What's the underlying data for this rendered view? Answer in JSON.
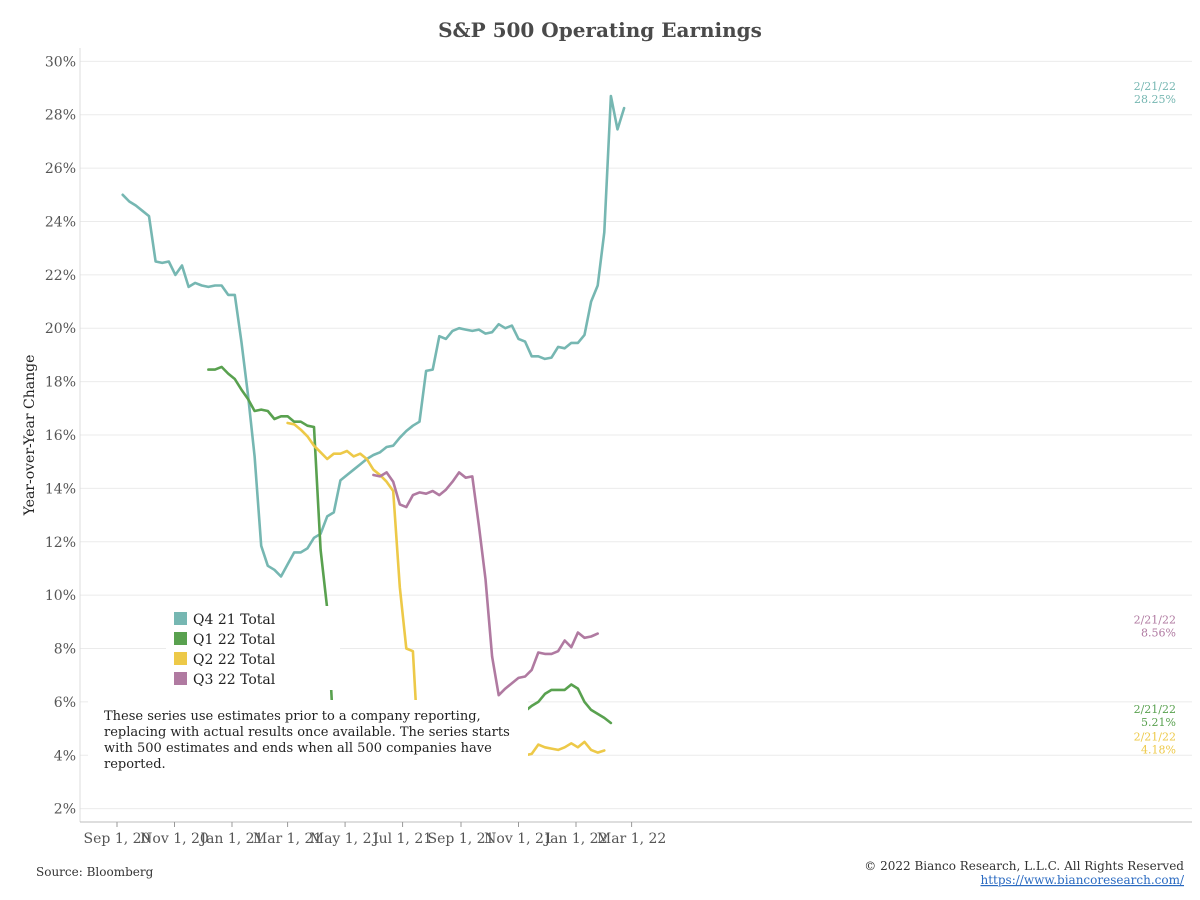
{
  "chart_data": {
    "type": "line",
    "title": "S&P 500 Operating Earnings",
    "ylabel": "Year-over-Year Change",
    "xlabel": "",
    "ylim": [
      1.5,
      30.5
    ],
    "grid": true,
    "legend_position": "bottom-left",
    "x_ticks": [
      "Sep 1, 20",
      "Nov 1, 20",
      "Jan 1, 21",
      "Mar 1, 21",
      "May 1, 21",
      "Jul 1, 21",
      "Sep 1, 21",
      "Nov 1, 21",
      "Jan 1, 22",
      "Mar 1, 22"
    ],
    "y_ticks": [
      "2%",
      "4%",
      "6%",
      "8%",
      "10%",
      "12%",
      "14%",
      "16%",
      "18%",
      "20%",
      "22%",
      "24%",
      "26%",
      "28%",
      "30%"
    ],
    "series": [
      {
        "name": "Q4 21 Total",
        "color": "#76b7b2",
        "end_label_date": "2/21/22",
        "end_label_value": "28.25%",
        "points": [
          [
            "2020-09-07",
            25.0
          ],
          [
            "2020-09-14",
            24.75
          ],
          [
            "2020-09-21",
            24.6
          ],
          [
            "2020-09-28",
            24.4
          ],
          [
            "2020-10-05",
            24.2
          ],
          [
            "2020-10-12",
            22.5
          ],
          [
            "2020-10-19",
            22.45
          ],
          [
            "2020-10-26",
            22.5
          ],
          [
            "2020-11-02",
            22.0
          ],
          [
            "2020-11-09",
            22.35
          ],
          [
            "2020-11-16",
            21.55
          ],
          [
            "2020-11-23",
            21.7
          ],
          [
            "2020-11-30",
            21.6
          ],
          [
            "2020-12-07",
            21.55
          ],
          [
            "2020-12-14",
            21.6
          ],
          [
            "2020-12-21",
            21.6
          ],
          [
            "2020-12-28",
            21.25
          ],
          [
            "2021-01-04",
            21.25
          ],
          [
            "2021-01-11",
            19.5
          ],
          [
            "2021-01-18",
            17.5
          ],
          [
            "2021-01-25",
            15.2
          ],
          [
            "2021-02-01",
            11.85
          ],
          [
            "2021-02-08",
            11.1
          ],
          [
            "2021-02-15",
            10.95
          ],
          [
            "2021-02-22",
            10.7
          ],
          [
            "2021-03-01",
            11.15
          ],
          [
            "2021-03-08",
            11.6
          ],
          [
            "2021-03-15",
            11.6
          ],
          [
            "2021-03-22",
            11.75
          ],
          [
            "2021-03-29",
            12.15
          ],
          [
            "2021-04-05",
            12.3
          ],
          [
            "2021-04-12",
            12.95
          ],
          [
            "2021-04-19",
            13.1
          ],
          [
            "2021-04-26",
            14.3
          ],
          [
            "2021-05-03",
            14.5
          ],
          [
            "2021-05-10",
            14.7
          ],
          [
            "2021-05-17",
            14.9
          ],
          [
            "2021-05-24",
            15.1
          ],
          [
            "2021-05-31",
            15.25
          ],
          [
            "2021-06-07",
            15.35
          ],
          [
            "2021-06-14",
            15.55
          ],
          [
            "2021-06-21",
            15.6
          ],
          [
            "2021-06-28",
            15.9
          ],
          [
            "2021-07-05",
            16.15
          ],
          [
            "2021-07-12",
            16.35
          ],
          [
            "2021-07-19",
            16.5
          ],
          [
            "2021-07-26",
            18.4
          ],
          [
            "2021-08-02",
            18.45
          ],
          [
            "2021-08-09",
            19.7
          ],
          [
            "2021-08-16",
            19.6
          ],
          [
            "2021-08-23",
            19.9
          ],
          [
            "2021-08-30",
            20.0
          ],
          [
            "2021-09-06",
            19.95
          ],
          [
            "2021-09-13",
            19.9
          ],
          [
            "2021-09-20",
            19.95
          ],
          [
            "2021-09-27",
            19.8
          ],
          [
            "2021-10-04",
            19.85
          ],
          [
            "2021-10-11",
            20.15
          ],
          [
            "2021-10-18",
            20.0
          ],
          [
            "2021-10-25",
            20.1
          ],
          [
            "2021-11-01",
            19.6
          ],
          [
            "2021-11-08",
            19.5
          ],
          [
            "2021-11-15",
            18.95
          ],
          [
            "2021-11-22",
            18.95
          ],
          [
            "2021-11-29",
            18.85
          ],
          [
            "2021-12-06",
            18.9
          ],
          [
            "2021-12-13",
            19.3
          ],
          [
            "2021-12-20",
            19.25
          ],
          [
            "2021-12-27",
            19.45
          ],
          [
            "2022-01-03",
            19.45
          ],
          [
            "2022-01-10",
            19.75
          ],
          [
            "2022-01-17",
            21.0
          ],
          [
            "2022-01-24",
            21.6
          ],
          [
            "2022-01-31",
            23.6
          ],
          [
            "2022-02-07",
            28.7
          ],
          [
            "2022-02-14",
            27.45
          ],
          [
            "2022-02-21",
            28.25
          ]
        ]
      },
      {
        "name": "Q1 22 Total",
        "color": "#59a14f",
        "end_label_date": "2/21/22",
        "end_label_value": "5.21%",
        "points": [
          [
            "2020-12-07",
            18.45
          ],
          [
            "2020-12-14",
            18.45
          ],
          [
            "2020-12-21",
            18.55
          ],
          [
            "2020-12-28",
            18.3
          ],
          [
            "2021-01-04",
            18.1
          ],
          [
            "2021-01-11",
            17.7
          ],
          [
            "2021-01-18",
            17.35
          ],
          [
            "2021-01-25",
            16.9
          ],
          [
            "2021-02-01",
            16.95
          ],
          [
            "2021-02-08",
            16.9
          ],
          [
            "2021-02-15",
            16.6
          ],
          [
            "2021-02-22",
            16.7
          ],
          [
            "2021-03-01",
            16.7
          ],
          [
            "2021-03-08",
            16.5
          ],
          [
            "2021-03-15",
            16.5
          ],
          [
            "2021-03-22",
            16.35
          ],
          [
            "2021-03-29",
            16.3
          ],
          [
            "2021-04-05",
            11.7
          ],
          [
            "2021-04-12",
            9.5
          ],
          [
            "2021-04-19",
            4.5
          ],
          [
            "2021-04-26",
            2.95
          ],
          [
            "2021-05-03",
            3.1
          ],
          [
            "2021-05-10",
            2.65
          ],
          [
            "2021-05-17",
            2.55
          ],
          [
            "2021-05-24",
            2.7
          ],
          [
            "2021-05-31",
            2.85
          ],
          [
            "2021-06-07",
            3.15
          ],
          [
            "2021-06-14",
            3.6
          ],
          [
            "2021-06-21",
            3.8
          ],
          [
            "2021-06-28",
            3.85
          ],
          [
            "2021-07-05",
            3.8
          ],
          [
            "2021-07-12",
            4.8
          ],
          [
            "2021-07-19",
            4.85
          ],
          [
            "2021-07-26",
            5.6
          ],
          [
            "2021-08-02",
            5.65
          ],
          [
            "2021-08-09",
            5.8
          ],
          [
            "2021-08-16",
            5.85
          ],
          [
            "2021-08-23",
            5.85
          ],
          [
            "2021-08-30",
            5.8
          ],
          [
            "2021-09-06",
            5.75
          ],
          [
            "2021-09-13",
            5.65
          ],
          [
            "2021-09-20",
            5.6
          ],
          [
            "2021-09-27",
            5.95
          ],
          [
            "2021-10-04",
            5.6
          ],
          [
            "2021-10-11",
            5.8
          ],
          [
            "2021-10-18",
            5.3
          ],
          [
            "2021-10-25",
            5.4
          ],
          [
            "2021-11-01",
            5.55
          ],
          [
            "2021-11-08",
            5.65
          ],
          [
            "2021-11-15",
            5.85
          ],
          [
            "2021-11-22",
            6.0
          ],
          [
            "2021-11-29",
            6.3
          ],
          [
            "2021-12-06",
            6.45
          ],
          [
            "2021-12-13",
            6.45
          ],
          [
            "2021-12-20",
            6.45
          ],
          [
            "2021-12-27",
            6.65
          ],
          [
            "2022-01-03",
            6.5
          ],
          [
            "2022-01-10",
            6.0
          ],
          [
            "2022-01-17",
            5.7
          ],
          [
            "2022-01-24",
            5.55
          ],
          [
            "2022-01-31",
            5.4
          ],
          [
            "2022-02-07",
            5.21
          ]
        ]
      },
      {
        "name": "Q2 22 Total",
        "color": "#edc948",
        "end_label_date": "2/21/22",
        "end_label_value": "4.18%",
        "points": [
          [
            "2021-03-01",
            16.45
          ],
          [
            "2021-03-08",
            16.4
          ],
          [
            "2021-03-15",
            16.2
          ],
          [
            "2021-03-22",
            15.95
          ],
          [
            "2021-03-29",
            15.6
          ],
          [
            "2021-04-05",
            15.35
          ],
          [
            "2021-04-12",
            15.1
          ],
          [
            "2021-04-19",
            15.3
          ],
          [
            "2021-04-26",
            15.3
          ],
          [
            "2021-05-03",
            15.4
          ],
          [
            "2021-05-10",
            15.2
          ],
          [
            "2021-05-17",
            15.3
          ],
          [
            "2021-05-24",
            15.1
          ],
          [
            "2021-05-31",
            14.7
          ],
          [
            "2021-06-07",
            14.5
          ],
          [
            "2021-06-14",
            14.25
          ],
          [
            "2021-06-21",
            13.9
          ],
          [
            "2021-06-28",
            10.3
          ],
          [
            "2021-07-05",
            8.0
          ],
          [
            "2021-07-12",
            7.9
          ],
          [
            "2021-07-19",
            3.5
          ],
          [
            "2021-07-26",
            3.3
          ],
          [
            "2021-08-02",
            3.25
          ],
          [
            "2021-08-09",
            3.2
          ],
          [
            "2021-08-16",
            3.15
          ],
          [
            "2021-08-23",
            3.2
          ],
          [
            "2021-08-30",
            3.6
          ],
          [
            "2021-09-06",
            3.6
          ],
          [
            "2021-09-13",
            3.55
          ],
          [
            "2021-09-20",
            3.95
          ],
          [
            "2021-09-27",
            3.45
          ],
          [
            "2021-10-04",
            3.5
          ],
          [
            "2021-10-11",
            3.3
          ],
          [
            "2021-10-18",
            3.35
          ],
          [
            "2021-10-25",
            3.4
          ],
          [
            "2021-11-01",
            3.65
          ],
          [
            "2021-11-08",
            4.0
          ],
          [
            "2021-11-15",
            4.05
          ],
          [
            "2021-11-22",
            4.4
          ],
          [
            "2021-11-29",
            4.3
          ],
          [
            "2021-12-06",
            4.25
          ],
          [
            "2021-12-13",
            4.2
          ],
          [
            "2021-12-20",
            4.3
          ],
          [
            "2021-12-27",
            4.45
          ],
          [
            "2022-01-03",
            4.3
          ],
          [
            "2022-01-10",
            4.5
          ],
          [
            "2022-01-17",
            4.2
          ],
          [
            "2022-01-24",
            4.1
          ],
          [
            "2022-01-31",
            4.18
          ]
        ]
      },
      {
        "name": "Q3 22 Total",
        "color": "#b07aa1",
        "end_label_date": "2/21/22",
        "end_label_value": "8.56%",
        "points": [
          [
            "2021-05-31",
            14.5
          ],
          [
            "2021-06-07",
            14.45
          ],
          [
            "2021-06-14",
            14.6
          ],
          [
            "2021-06-21",
            14.25
          ],
          [
            "2021-06-28",
            13.4
          ],
          [
            "2021-07-05",
            13.3
          ],
          [
            "2021-07-12",
            13.75
          ],
          [
            "2021-07-19",
            13.85
          ],
          [
            "2021-07-26",
            13.8
          ],
          [
            "2021-08-02",
            13.9
          ],
          [
            "2021-08-09",
            13.75
          ],
          [
            "2021-08-16",
            13.95
          ],
          [
            "2021-08-23",
            14.25
          ],
          [
            "2021-08-30",
            14.6
          ],
          [
            "2021-09-06",
            14.4
          ],
          [
            "2021-09-13",
            14.45
          ],
          [
            "2021-09-20",
            12.6
          ],
          [
            "2021-09-27",
            10.6
          ],
          [
            "2021-10-04",
            7.7
          ],
          [
            "2021-10-11",
            6.25
          ],
          [
            "2021-10-18",
            6.5
          ],
          [
            "2021-10-25",
            6.7
          ],
          [
            "2021-11-01",
            6.9
          ],
          [
            "2021-11-08",
            6.95
          ],
          [
            "2021-11-15",
            7.2
          ],
          [
            "2021-11-22",
            7.85
          ],
          [
            "2021-11-29",
            7.8
          ],
          [
            "2021-12-06",
            7.8
          ],
          [
            "2021-12-13",
            7.9
          ],
          [
            "2021-12-20",
            8.3
          ],
          [
            "2021-12-27",
            8.05
          ],
          [
            "2022-01-03",
            8.6
          ],
          [
            "2022-01-10",
            8.4
          ],
          [
            "2022-01-17",
            8.45
          ],
          [
            "2022-01-24",
            8.56
          ]
        ]
      }
    ]
  },
  "note": "These series use estimates prior to a company reporting, replacing with actual results once available. The series starts with 500 estimates and ends when all 500 companies have reported.",
  "footer": {
    "source": "Source: Bloomberg",
    "copyright": "© 2022 Bianco Research, L.L.C. All Rights Reserved",
    "url": "https://www.biancoresearch.com/"
  }
}
